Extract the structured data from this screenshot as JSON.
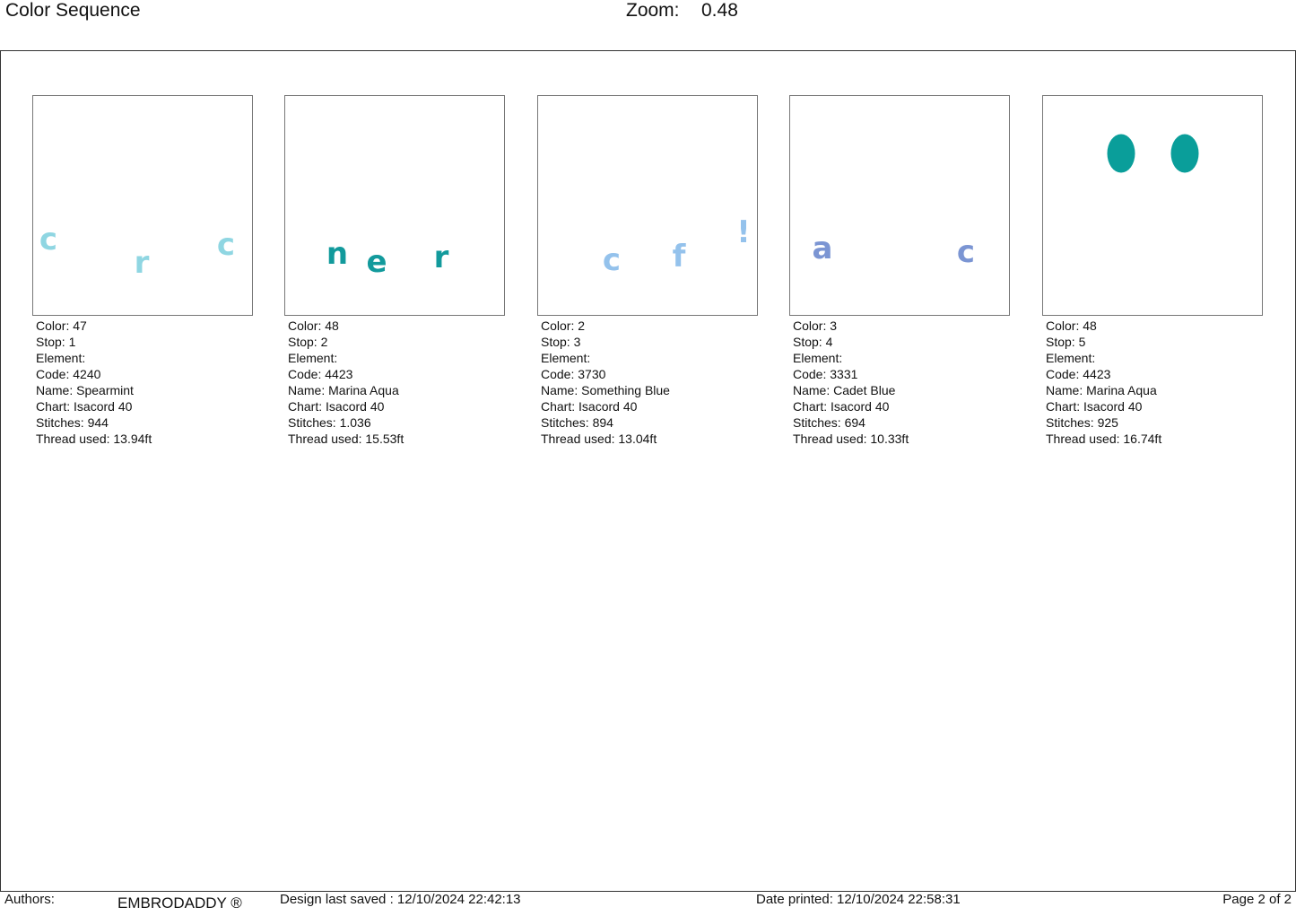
{
  "header": {
    "title": "Color Sequence",
    "zoom_label": "Zoom:",
    "zoom_value": "0.48"
  },
  "labels": {
    "color": "Color: ",
    "stop": "Stop: ",
    "element": "Element:",
    "code": "Code: ",
    "name": "Name: ",
    "chart": "Chart: ",
    "stitches": "Stitches: ",
    "thread": "Thread used: "
  },
  "cards": [
    {
      "color": "47",
      "stop": "1",
      "code": "4240",
      "name": "Spearmint",
      "chart": "Isacord 40",
      "stitches": "944",
      "thread": "13.94ft",
      "hex": "#8fd6e2",
      "glyphs": [
        "c",
        "r",
        "c"
      ]
    },
    {
      "color": "48",
      "stop": "2",
      "code": "4423",
      "name": "Marina Aqua",
      "chart": "Isacord 40",
      "stitches": "1.036",
      "thread": "15.53ft",
      "hex": "#129a9c",
      "glyphs": [
        "n",
        "e",
        "r"
      ]
    },
    {
      "color": "2",
      "stop": "3",
      "code": "3730",
      "name": "Something Blue",
      "chart": "Isacord 40",
      "stitches": "894",
      "thread": "13.04ft",
      "hex": "#94c2ec",
      "glyphs": [
        "c",
        "f",
        "!"
      ]
    },
    {
      "color": "3",
      "stop": "4",
      "code": "3331",
      "name": "Cadet Blue",
      "chart": "Isacord 40",
      "stitches": "694",
      "thread": "10.33ft",
      "hex": "#7b95d3",
      "glyphs": [
        "a",
        "c"
      ]
    },
    {
      "color": "48",
      "stop": "5",
      "code": "4423",
      "name": "Marina Aqua",
      "chart": "Isacord 40",
      "stitches": "925",
      "thread": "16.74ft",
      "hex": "#0a9e9a",
      "glyphs": []
    }
  ],
  "footer": {
    "authors_label": "Authors:",
    "brand": "EMBRODADDY ®",
    "last_saved": "Design last saved : 12/10/2024 22:42:13",
    "printed": "Date printed: 12/10/2024 22:58:31",
    "page": "Page 2 of 2"
  }
}
